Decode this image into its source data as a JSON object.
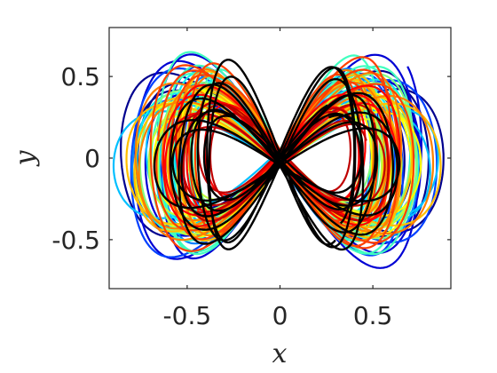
{
  "chart_data": {
    "type": "line",
    "title": "",
    "xlabel": "x",
    "ylabel": "y",
    "xlim": [
      -0.92,
      0.92
    ],
    "ylim": [
      -0.8,
      0.8
    ],
    "xticks": [
      -0.5,
      0,
      0.5
    ],
    "xtick_labels": [
      "-0.5",
      "0",
      "0.5"
    ],
    "yticks": [
      -0.5,
      0,
      0.5
    ],
    "ytick_labels": [
      "-0.5",
      "0",
      "0.5"
    ],
    "grid": false,
    "legend": "none",
    "colormap": "jet",
    "series": [
      {
        "color": "#00008f",
        "x_amp": 0.86,
        "y_amp": 0.48,
        "x_freq": 1,
        "y_freq": 2,
        "phase": 0.4,
        "drift": 0.07
      },
      {
        "color": "#0000d4",
        "x_amp": 0.8,
        "y_amp": 0.62,
        "x_freq": 1,
        "y_freq": 2,
        "phase": 1.1,
        "drift": 0.06
      },
      {
        "color": "#0040ff",
        "x_amp": 0.82,
        "y_amp": 0.55,
        "x_freq": 1,
        "y_freq": 2,
        "phase": 2.0,
        "drift": 0.08
      },
      {
        "color": "#0080ff",
        "x_amp": 0.76,
        "y_amp": 0.5,
        "x_freq": 1,
        "y_freq": 2,
        "phase": 2.8,
        "drift": 0.06
      },
      {
        "color": "#00bfff",
        "x_amp": 0.84,
        "y_amp": 0.44,
        "x_freq": 1,
        "y_freq": 2,
        "phase": 0.9,
        "drift": 0.07
      },
      {
        "color": "#10efef",
        "x_amp": 0.74,
        "y_amp": 0.52,
        "x_freq": 1,
        "y_freq": 2,
        "phase": 3.5,
        "drift": 0.05
      },
      {
        "color": "#40ffbf",
        "x_amp": 0.7,
        "y_amp": 0.6,
        "x_freq": 1,
        "y_freq": 2,
        "phase": 4.2,
        "drift": 0.06
      },
      {
        "color": "#80ff80",
        "x_amp": 0.78,
        "y_amp": 0.46,
        "x_freq": 1,
        "y_freq": 2,
        "phase": 5.0,
        "drift": 0.05
      },
      {
        "color": "#bfff40",
        "x_amp": 0.72,
        "y_amp": 0.42,
        "x_freq": 1,
        "y_freq": 2,
        "phase": 1.6,
        "drift": 0.05
      },
      {
        "color": "#ffff00",
        "x_amp": 0.76,
        "y_amp": 0.45,
        "x_freq": 1,
        "y_freq": 2,
        "phase": 2.4,
        "drift": 0.05
      },
      {
        "color": "#ffbf00",
        "x_amp": 0.82,
        "y_amp": 0.5,
        "x_freq": 1,
        "y_freq": 2,
        "phase": 3.0,
        "drift": 0.06
      },
      {
        "color": "#ff8000",
        "x_amp": 0.78,
        "y_amp": 0.55,
        "x_freq": 1,
        "y_freq": 2,
        "phase": 0.2,
        "drift": 0.06
      },
      {
        "color": "#ff4000",
        "x_amp": 0.7,
        "y_amp": 0.58,
        "x_freq": 1,
        "y_freq": 2,
        "phase": 4.6,
        "drift": 0.05
      },
      {
        "color": "#ff0000",
        "x_amp": 0.66,
        "y_amp": 0.4,
        "x_freq": 1,
        "y_freq": 2,
        "phase": 5.6,
        "drift": 0.05
      },
      {
        "color": "#bf0000",
        "x_amp": 0.6,
        "y_amp": 0.35,
        "x_freq": 1,
        "y_freq": 2,
        "phase": 1.3,
        "drift": 0.04
      },
      {
        "color": "#000000",
        "x_amp": 0.66,
        "y_amp": 0.32,
        "x_freq": 1,
        "y_freq": 2,
        "phase": 0.6,
        "drift": 0.05
      },
      {
        "color": "#000000",
        "x_amp": 0.58,
        "y_amp": 0.56,
        "x_freq": 1,
        "y_freq": 2,
        "phase": 2.2,
        "drift": 0.06
      }
    ]
  }
}
